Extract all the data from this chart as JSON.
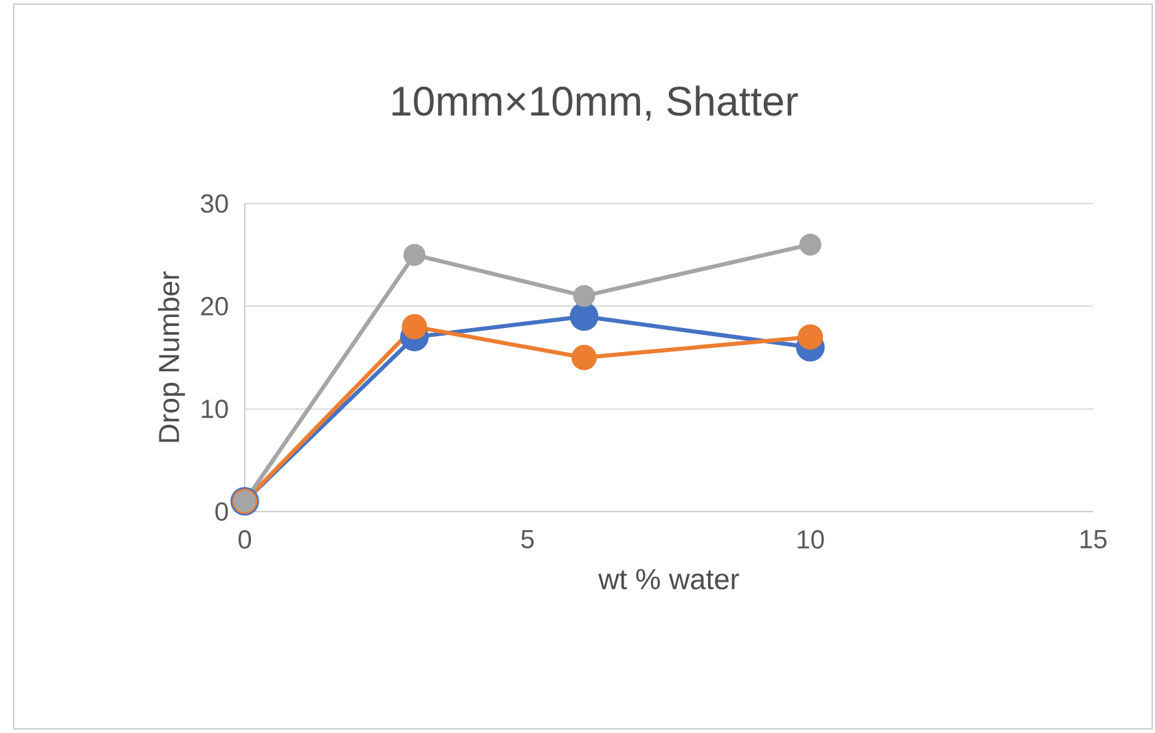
{
  "chart_data": {
    "type": "line",
    "title": "10mm×10mm, Shatter",
    "xlabel": "wt % water",
    "ylabel": "Drop Number",
    "xlim": [
      0,
      15
    ],
    "xticks": [
      0,
      5,
      10,
      15
    ],
    "ylim": [
      0,
      30
    ],
    "yticks": [
      0,
      10,
      20,
      30
    ],
    "grid": "y",
    "marker": "circle",
    "line_style": "solid",
    "series": [
      {
        "color": "#4472c4",
        "x": [
          0,
          3,
          6,
          10
        ],
        "values": [
          1,
          17,
          19,
          16
        ]
      },
      {
        "color": "#ed7d31",
        "x": [
          0,
          3,
          6,
          10
        ],
        "values": [
          1,
          18,
          15,
          17
        ]
      },
      {
        "color": "#a5a5a5",
        "x": [
          0,
          3,
          6,
          10
        ],
        "values": [
          1,
          25,
          21,
          26
        ]
      }
    ]
  }
}
